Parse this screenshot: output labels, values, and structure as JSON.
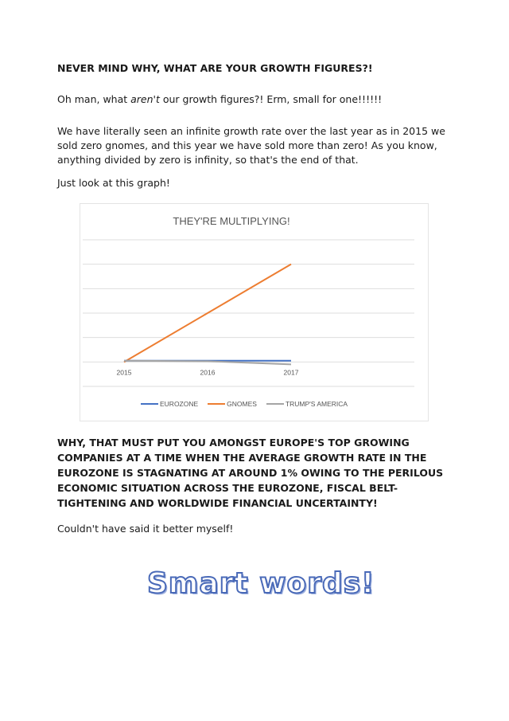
{
  "heading1": "NEVER MIND WHY, WHAT ARE YOUR GROWTH FIGURES?!",
  "para1": {
    "pre": "Oh man, what ",
    "em": "aren't",
    "post": " our growth figures?! Erm, small for one!!!!!!"
  },
  "para2": "We have literally seen an infinite growth rate over the last year as in 2015 we sold zero gnomes, and this year we have sold more than zero! As you know, anything divided by zero is infinity, so that's the end of that.",
  "para3": "Just look at this graph!",
  "chart_data": {
    "type": "line",
    "title": "THEY'RE MULTIPLYING!",
    "categories": [
      "2015",
      "2016",
      "2017"
    ],
    "ylim": [
      -1,
      5
    ],
    "y_tick_labels_shown": false,
    "grid": true,
    "legend": "bottom",
    "series": [
      {
        "name": "EUROZONE",
        "color": "#4472c4",
        "values": [
          0.05,
          0.05,
          0.05
        ]
      },
      {
        "name": "GNOMES",
        "color": "#ed7d31",
        "values": [
          0,
          2,
          4
        ]
      },
      {
        "name": "TRUMP'S AMERICA",
        "color": "#a5a5a5",
        "values": [
          0.05,
          0.03,
          -0.1
        ]
      }
    ]
  },
  "heading2": "WHY, THAT MUST PUT YOU AMONGST EUROPE'S TOP GROWING COMPANIES AT A TIME WHEN THE AVERAGE GROWTH RATE IN THE EUROZONE IS STAGNATING AT AROUND 1% OWING TO THE PERILOUS ECONOMIC SITUATION ACROSS THE EUROZONE, FISCAL BELT-TIGHTENING AND WORLDWIDE FINANCIAL UNCERTAINTY!",
  "para4": "Couldn't have said it better myself!",
  "wordart": "Smart words!"
}
